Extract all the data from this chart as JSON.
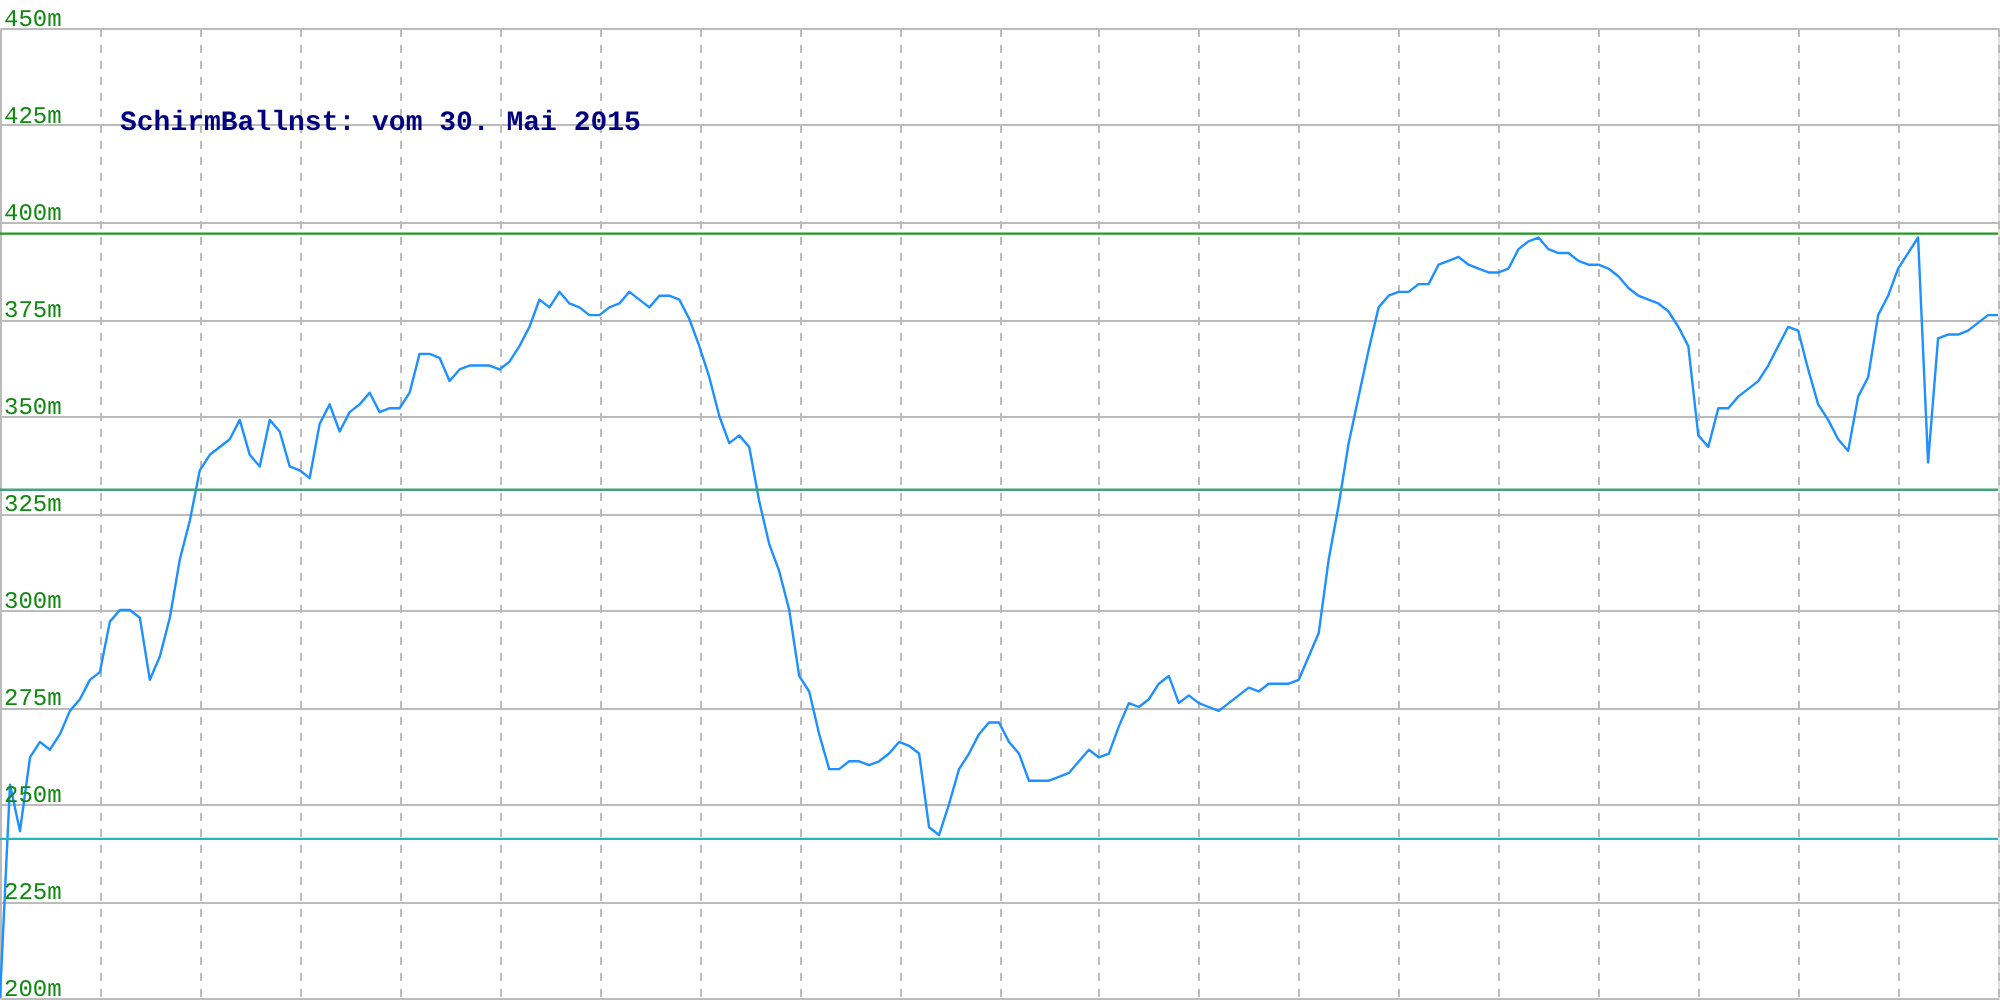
{
  "chart_data": {
    "type": "line",
    "title": "SchirmBallnst: vom 30. Mai 2015",
    "categories": [
      null,
      null,
      null,
      null,
      null,
      null,
      null,
      null,
      null,
      null,
      null,
      null,
      null,
      null,
      null,
      null,
      null,
      null,
      null,
      null,
      null,
      null,
      null,
      null,
      null,
      null,
      null,
      null,
      null,
      null,
      null,
      null,
      null,
      null,
      null,
      null,
      null,
      null,
      null,
      null,
      null,
      null,
      null,
      null,
      null,
      null,
      null,
      null,
      null,
      null,
      null,
      null,
      null,
      null,
      null,
      null,
      null,
      null,
      null,
      null,
      null,
      null,
      null,
      null,
      null,
      null,
      null,
      null,
      null,
      null,
      null,
      null,
      null,
      null,
      null,
      null,
      null,
      null,
      null,
      null,
      null,
      null,
      null,
      null,
      null,
      null,
      null,
      null,
      null,
      null,
      null,
      null,
      null,
      null,
      null,
      null,
      null,
      null,
      null,
      null,
      null,
      null,
      null,
      null,
      null,
      null,
      null,
      null,
      null,
      null,
      null,
      null,
      null,
      null,
      null,
      null,
      null,
      null,
      null,
      null,
      null,
      null,
      null,
      null,
      null,
      null,
      null,
      null,
      null,
      null,
      null,
      null,
      null,
      null,
      null,
      null,
      null,
      null,
      null,
      null,
      null,
      null,
      null,
      null,
      null,
      null,
      null,
      null,
      null,
      null,
      null,
      null,
      null,
      null,
      null,
      null,
      null,
      null,
      null,
      null,
      null,
      null,
      null,
      null,
      null,
      null,
      null,
      null,
      null,
      null,
      null,
      null,
      null,
      null,
      null,
      null,
      null,
      null,
      null,
      null,
      null,
      null,
      null,
      null,
      null,
      null,
      null,
      null,
      null,
      null,
      null,
      null,
      null,
      null,
      null,
      null,
      null,
      null,
      null,
      null,
      null
    ],
    "series": [
      {
        "color": "#1e90ff",
        "values": [
          200,
          255,
          243,
          262,
          266,
          264,
          268,
          274,
          277,
          282,
          284,
          297,
          300,
          300,
          298,
          282,
          288,
          298,
          313,
          323,
          336,
          340,
          342,
          344,
          349,
          340,
          337,
          349,
          346,
          337,
          336,
          334,
          348,
          353,
          346,
          351,
          353,
          356,
          351,
          352,
          352,
          356,
          366,
          366,
          365,
          359,
          362,
          363,
          363,
          363,
          362,
          364,
          368,
          373,
          380,
          378,
          382,
          379,
          378,
          376,
          376,
          378,
          379,
          382,
          380,
          378,
          381,
          381,
          380,
          375,
          368,
          360,
          350,
          343,
          345,
          342,
          328,
          317,
          310,
          300,
          283,
          279,
          268,
          259,
          259,
          261,
          261,
          260,
          261,
          263,
          266,
          265,
          263,
          244,
          242,
          250,
          259,
          263,
          268,
          271,
          271,
          266,
          263,
          256,
          256,
          256,
          257,
          258,
          261,
          264,
          262,
          263,
          270,
          276,
          275,
          277,
          281,
          283,
          276,
          278,
          276,
          275,
          274,
          276,
          278,
          280,
          279,
          281,
          281,
          281,
          282,
          288,
          294,
          313,
          327,
          343,
          355,
          367,
          378,
          381,
          382,
          382,
          384,
          384,
          389,
          390,
          391,
          389,
          388,
          387,
          387,
          388,
          393,
          395,
          396,
          393,
          392,
          392,
          390,
          389,
          389,
          388,
          386,
          383,
          381,
          380,
          379,
          377,
          373,
          368,
          345,
          342,
          352,
          352,
          355,
          357,
          359,
          363,
          368,
          373,
          372,
          362,
          353,
          349,
          344,
          341,
          355,
          360,
          376,
          381,
          388,
          392,
          396,
          338,
          370,
          371,
          371,
          372,
          374,
          376,
          376
        ]
      }
    ],
    "ylim": [
      200,
      450
    ],
    "yticks": [
      {
        "value": 200,
        "label": "200m"
      },
      {
        "value": 225,
        "label": "225m"
      },
      {
        "value": 250,
        "label": "250m"
      },
      {
        "value": 275,
        "label": "275m"
      },
      {
        "value": 300,
        "label": "300m"
      },
      {
        "value": 325,
        "label": "325m"
      },
      {
        "value": 350,
        "label": "350m"
      },
      {
        "value": 375,
        "label": "375m"
      },
      {
        "value": 400,
        "label": "400m"
      },
      {
        "value": 425,
        "label": "425m"
      },
      {
        "value": 450,
        "label": "450m"
      }
    ],
    "ref_lines": [
      {
        "axis": "y",
        "value": 397,
        "color": "#229922"
      },
      {
        "axis": "y",
        "value": 331,
        "color": "#44a27a"
      },
      {
        "axis": "y",
        "value": 241,
        "color": "#22b8b8"
      }
    ],
    "grid": true,
    "marker": "none",
    "line_style": "solid",
    "tick_labels": "y"
  }
}
